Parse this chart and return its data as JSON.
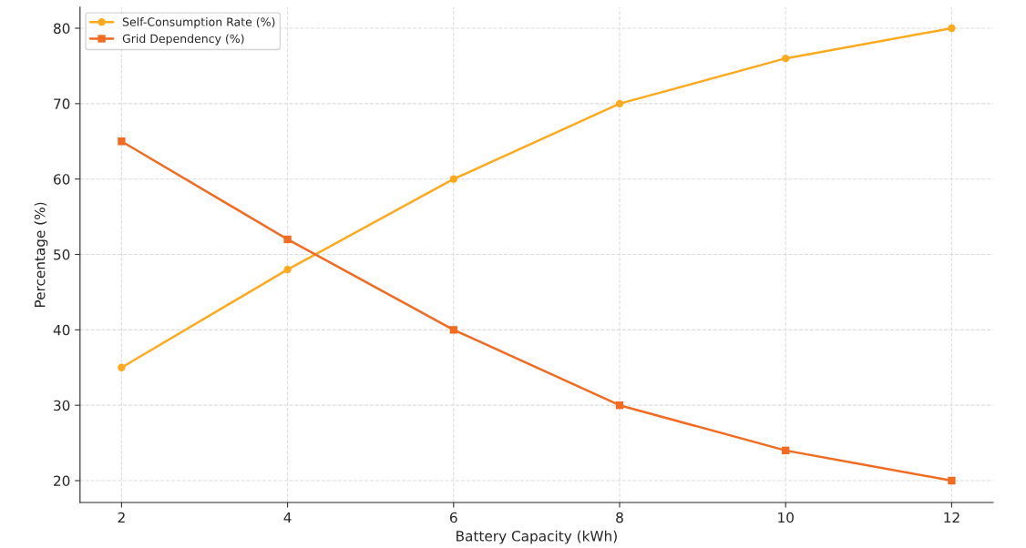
{
  "chart_data": {
    "type": "line",
    "xlabel": "Battery Capacity (kWh)",
    "ylabel": "Percentage (%)",
    "x": [
      2,
      4,
      6,
      8,
      10,
      12
    ],
    "series": [
      {
        "name": "Self-Consumption Rate (%)",
        "color": "#ffaa1d",
        "marker": "circle",
        "values": [
          35,
          48,
          60,
          70,
          76,
          80
        ]
      },
      {
        "name": "Grid Dependency (%)",
        "color": "#f26b21",
        "marker": "square",
        "values": [
          65,
          52,
          40,
          30,
          24,
          20
        ]
      }
    ],
    "xlim": [
      1.5,
      12.5
    ],
    "xticks": [
      2,
      4,
      6,
      8,
      10,
      12
    ],
    "ylim": [
      17.1,
      82.8
    ],
    "yticks": [
      20,
      30,
      40,
      50,
      60,
      70,
      80
    ],
    "grid": true,
    "legend": "top left",
    "line_style": "solid"
  }
}
